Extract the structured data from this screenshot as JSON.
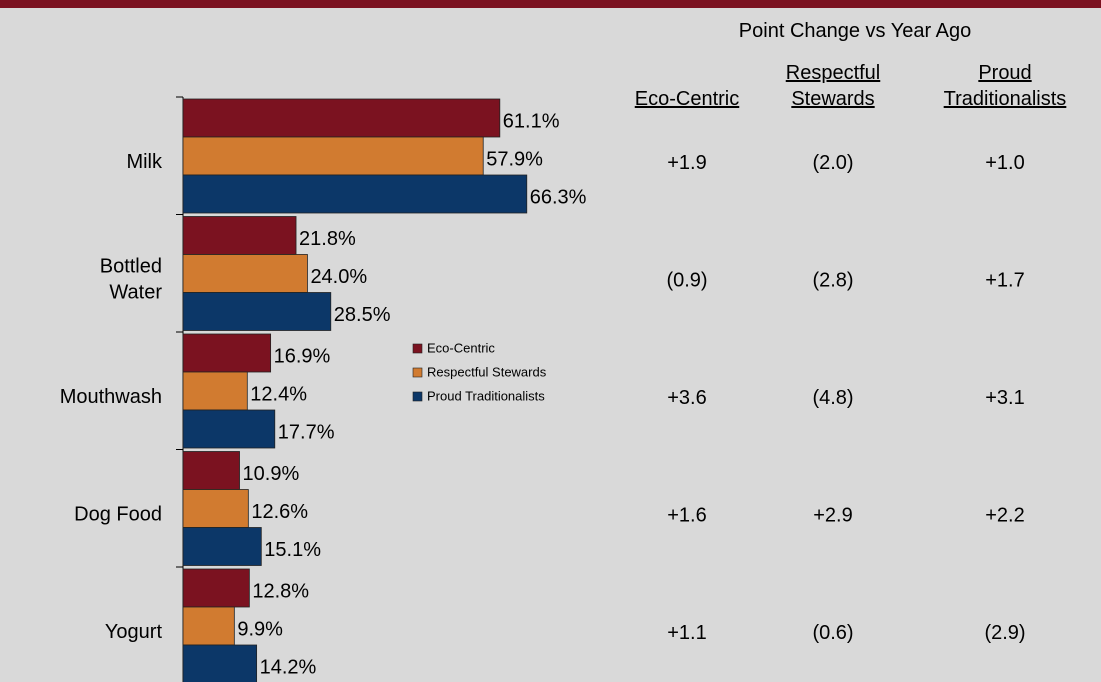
{
  "chart_data": {
    "type": "bar",
    "orientation": "horizontal",
    "categories": [
      "Milk",
      "Bottled Water",
      "Mouthwash",
      "Dog Food",
      "Yogurt"
    ],
    "series": [
      {
        "name": "Eco-Centric",
        "color": "#7b1220",
        "values": [
          61.1,
          21.8,
          16.9,
          10.9,
          12.8
        ],
        "value_labels": [
          "61.1%",
          "21.8%",
          "16.9%",
          "10.9%",
          "12.8%"
        ]
      },
      {
        "name": "Respectful Stewards",
        "color": "#d17b30",
        "values": [
          57.9,
          24.0,
          12.4,
          12.6,
          9.9
        ],
        "value_labels": [
          "57.9%",
          "24.0%",
          "12.4%",
          "12.6%",
          "9.9%"
        ]
      },
      {
        "name": "Proud Traditionalists",
        "color": "#0c3768",
        "values": [
          66.3,
          28.5,
          17.7,
          15.1,
          14.2
        ],
        "value_labels": [
          "66.3%",
          "28.5%",
          "17.7%",
          "15.1%",
          "14.2%"
        ]
      }
    ]
  },
  "table": {
    "title": "Point Change vs Year Ago",
    "columns": [
      "Eco-Centric",
      "Respectful Stewards",
      "Proud Traditionalists"
    ],
    "rows": [
      [
        "+1.9",
        "(2.0)",
        "+1.0"
      ],
      [
        "(0.9)",
        "(2.8)",
        "+1.7"
      ],
      [
        "+3.6",
        "(4.8)",
        "+3.1"
      ],
      [
        "+1.6",
        "+2.9",
        "+2.2"
      ],
      [
        "+1.1",
        "(0.6)",
        "(2.9)"
      ]
    ]
  }
}
